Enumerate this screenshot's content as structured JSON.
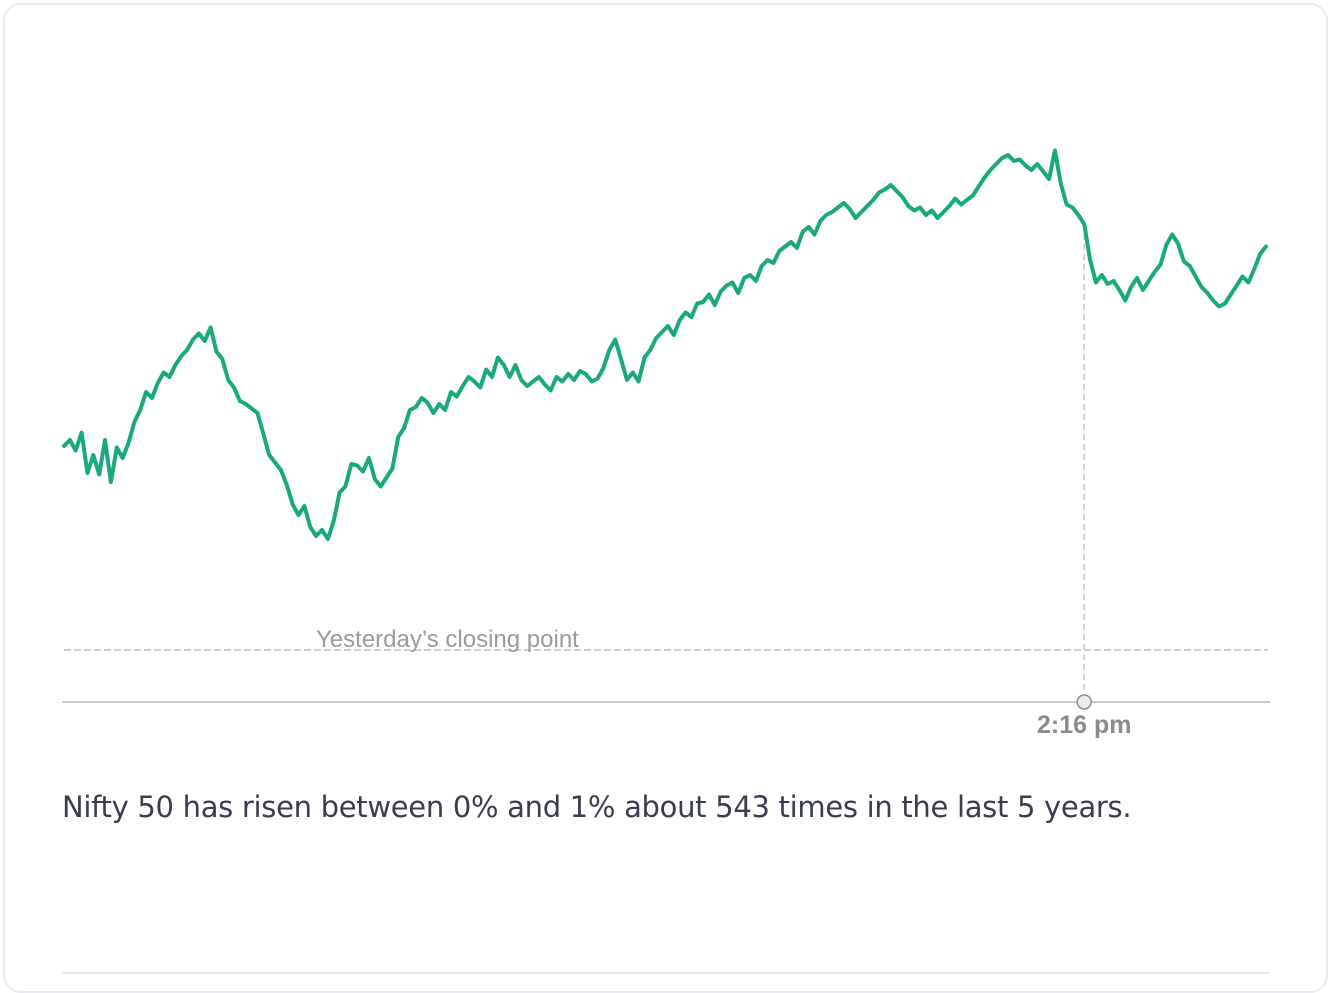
{
  "caption": "Nifty 50 has risen between 0% and 1% about 543 times in the last 5 years.",
  "chart_data": {
    "type": "line",
    "title": "",
    "xlabel": "",
    "ylabel": "",
    "series": [
      {
        "color": "#1aa97e",
        "values": [
          1.36,
          1.4,
          1.33,
          1.45,
          1.18,
          1.3,
          1.17,
          1.4,
          1.12,
          1.35,
          1.28,
          1.38,
          1.52,
          1.6,
          1.72,
          1.68,
          1.78,
          1.85,
          1.82,
          1.9,
          1.96,
          2.0,
          2.07,
          2.11,
          2.06,
          2.15,
          1.99,
          1.94,
          1.8,
          1.75,
          1.66,
          1.64,
          1.61,
          1.58,
          1.44,
          1.3,
          1.25,
          1.2,
          1.1,
          0.97,
          0.9,
          0.96,
          0.82,
          0.76,
          0.8,
          0.74,
          0.86,
          1.05,
          1.09,
          1.24,
          1.23,
          1.19,
          1.28,
          1.14,
          1.09,
          1.15,
          1.21,
          1.42,
          1.48,
          1.6,
          1.62,
          1.68,
          1.65,
          1.58,
          1.64,
          1.6,
          1.72,
          1.69,
          1.76,
          1.82,
          1.79,
          1.75,
          1.87,
          1.82,
          1.95,
          1.9,
          1.82,
          1.9,
          1.8,
          1.76,
          1.79,
          1.82,
          1.77,
          1.73,
          1.82,
          1.79,
          1.84,
          1.8,
          1.86,
          1.84,
          1.79,
          1.81,
          1.88,
          2.0,
          2.07,
          1.94,
          1.8,
          1.85,
          1.79,
          1.95,
          2.0,
          2.08,
          2.12,
          2.16,
          2.1,
          2.2,
          2.25,
          2.22,
          2.31,
          2.32,
          2.37,
          2.3,
          2.39,
          2.43,
          2.45,
          2.38,
          2.48,
          2.5,
          2.46,
          2.56,
          2.6,
          2.58,
          2.66,
          2.69,
          2.72,
          2.68,
          2.79,
          2.82,
          2.77,
          2.86,
          2.9,
          2.92,
          2.95,
          2.98,
          2.94,
          2.88,
          2.92,
          2.96,
          3.0,
          3.05,
          3.07,
          3.1,
          3.06,
          3.02,
          2.96,
          2.93,
          2.95,
          2.9,
          2.93,
          2.88,
          2.92,
          2.96,
          3.01,
          2.97,
          3.0,
          3.03,
          3.09,
          3.15,
          3.2,
          3.24,
          3.28,
          3.3,
          3.26,
          3.27,
          3.23,
          3.2,
          3.24,
          3.19,
          3.14,
          3.33,
          3.11,
          2.97,
          2.95,
          2.9,
          2.84,
          2.6,
          2.45,
          2.5,
          2.44,
          2.46,
          2.4,
          2.33,
          2.42,
          2.48,
          2.4,
          2.46,
          2.52,
          2.57,
          2.7,
          2.77,
          2.71,
          2.59,
          2.56,
          2.49,
          2.42,
          2.38,
          2.33,
          2.29,
          2.31,
          2.37,
          2.43,
          2.49,
          2.45,
          2.54,
          2.64,
          2.69
        ]
      }
    ],
    "reference_line": {
      "label": "Yesterday’s closing point",
      "value": 0.0
    },
    "marker": {
      "label": "2:16 pm",
      "index": 174
    },
    "grid": false,
    "legend": "none"
  }
}
